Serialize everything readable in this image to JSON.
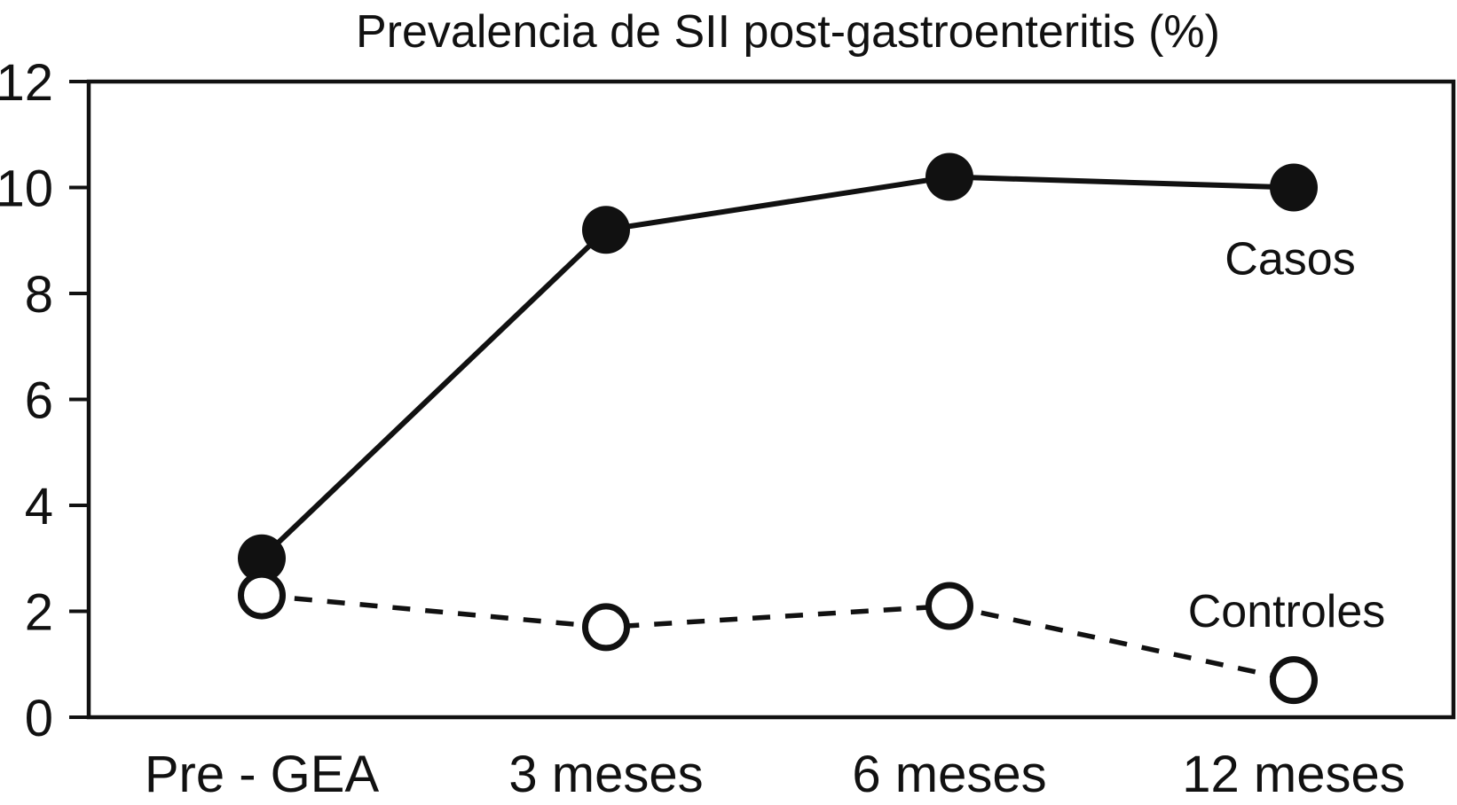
{
  "chart_data": {
    "type": "line",
    "title": "Prevalencia de SII post-gastroenteritis (%)",
    "categories": [
      "Pre - GEA",
      "3 meses",
      "6 meses",
      "12 meses"
    ],
    "series": [
      {
        "name": "Casos",
        "values": [
          3.0,
          9.2,
          10.2,
          10.0
        ],
        "marker": "filled-circle",
        "line_style": "solid",
        "label_position": "below-right-of-last-point"
      },
      {
        "name": "Controles",
        "values": [
          2.3,
          1.7,
          2.1,
          0.7
        ],
        "marker": "open-circle",
        "line_style": "dashed",
        "label_position": "above-last-point"
      }
    ],
    "xlabel": "",
    "ylabel": "",
    "ylim": [
      0,
      12
    ],
    "yticks": [
      0,
      2,
      4,
      6,
      8,
      10,
      12
    ],
    "grid": false,
    "legend_position": "inline-labels",
    "colors": {
      "foreground": "#111111",
      "background": "#ffffff"
    }
  }
}
